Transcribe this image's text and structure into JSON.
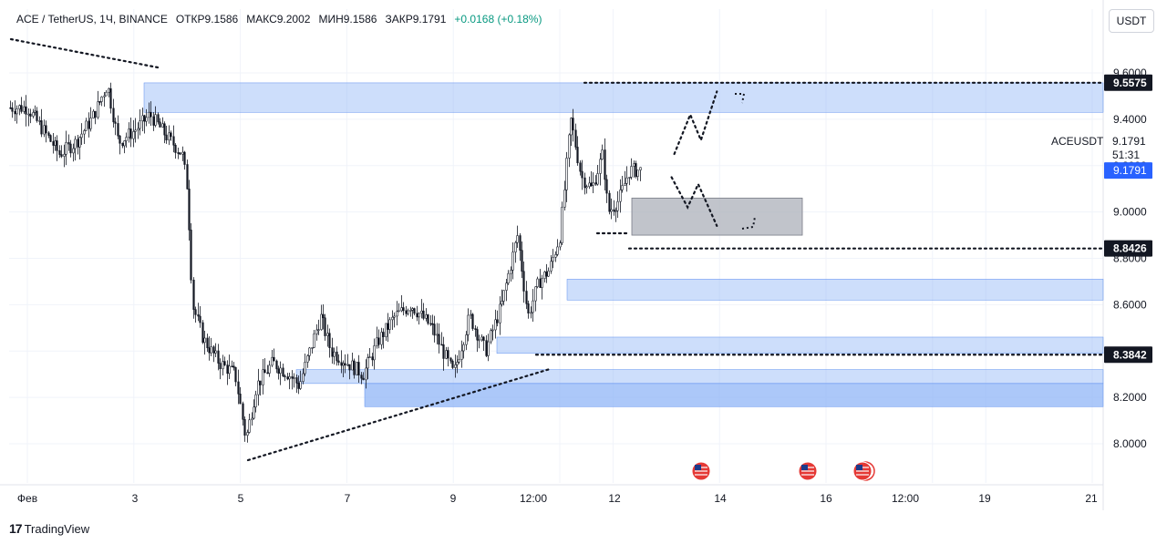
{
  "header": {
    "symbol": "ACE / TetherUS, 1Ч, BINANCE",
    "open_label": "ОТКР",
    "open_value": "9.1586",
    "high_label": "МАКС",
    "high_value": "9.2002",
    "low_label": "МИН",
    "low_value": "9.1586",
    "close_label": "ЗАКР",
    "close_value": "9.1791",
    "change": "+0.0168 (+0.18%)"
  },
  "currency_button": "USDT",
  "branding": {
    "logo_text": "TradingView"
  },
  "colors": {
    "zone": "#90b6f7",
    "grey_zone": "#b2b5be",
    "up": "#131722",
    "down": "#131722",
    "badge": "#131722",
    "price_badge": "#2962ff"
  },
  "symbol_tag": {
    "name": "ACEUSDT",
    "price": "9.1791",
    "countdown": "51:31",
    "badge_price": "9.1791"
  },
  "chart_data": {
    "type": "candlestick",
    "y_axis": {
      "ticks": [
        9.6,
        9.4,
        9.2,
        9.0,
        8.8,
        8.6,
        8.4,
        8.2,
        8.0
      ],
      "tick_labels": [
        "9.6000",
        "9.4000",
        "9.2000",
        "9.0000",
        "8.8000",
        "8.6000",
        "8.4000",
        "8.2000",
        "8.0000"
      ],
      "range": [
        7.9,
        9.68
      ]
    },
    "x_axis": {
      "labels": [
        "Фев",
        "3",
        "5",
        "7",
        "9",
        "12:00",
        "12",
        "14",
        "16",
        "12:00",
        "19",
        "21"
      ]
    },
    "level_badges": [
      "9.5575",
      "8.8426",
      "8.3842"
    ],
    "levels": [
      9.5575,
      8.8426,
      8.3842
    ],
    "zones": [
      {
        "from": 9.557,
        "to": 9.43,
        "start": "3",
        "end": "right"
      },
      {
        "from": 8.71,
        "to": 8.62,
        "start": "12:00 (Feb 10)",
        "end": "right"
      },
      {
        "from": 8.46,
        "to": 8.39,
        "start": "10",
        "end": "right"
      },
      {
        "from": 8.32,
        "to": 8.26,
        "start": "8",
        "end": "right"
      },
      {
        "from": 8.26,
        "to": 8.16,
        "start": "6",
        "end": "right"
      }
    ],
    "grey_zone": {
      "from": 9.06,
      "to": 8.9
    },
    "trendlines": [
      {
        "from": {
          "t": "Feb 1",
          "price": 9.78
        },
        "to": {
          "t": "Feb 3.4",
          "price": 9.65
        }
      },
      {
        "from": {
          "t": "Feb 5",
          "price": 7.93
        },
        "to": {
          "t": "Feb 10.3",
          "price": 8.32
        }
      }
    ],
    "candles_approx": {
      "note": "Hourly candles approximated from image",
      "path_points": [
        [
          1.0,
          9.45
        ],
        [
          1.3,
          9.35
        ],
        [
          1.6,
          9.25
        ],
        [
          1.9,
          9.3
        ],
        [
          2.2,
          9.4
        ],
        [
          2.5,
          9.55
        ],
        [
          2.7,
          9.3
        ],
        [
          3.0,
          9.35
        ],
        [
          3.3,
          9.42
        ],
        [
          3.6,
          9.33
        ],
        [
          3.9,
          9.25
        ],
        [
          4.0,
          9.1
        ],
        [
          4.1,
          8.6
        ],
        [
          4.3,
          8.45
        ],
        [
          4.6,
          8.35
        ],
        [
          4.9,
          8.3
        ],
        [
          5.1,
          8.02
        ],
        [
          5.3,
          8.25
        ],
        [
          5.6,
          8.35
        ],
        [
          5.9,
          8.3
        ],
        [
          6.1,
          8.25
        ],
        [
          6.3,
          8.4
        ],
        [
          6.5,
          8.55
        ],
        [
          6.7,
          8.4
        ],
        [
          7.0,
          8.35
        ],
        [
          7.3,
          8.3
        ],
        [
          7.6,
          8.45
        ],
        [
          7.9,
          8.55
        ],
        [
          8.2,
          8.6
        ],
        [
          8.6,
          8.5
        ],
        [
          9.0,
          8.3
        ],
        [
          9.3,
          8.55
        ],
        [
          9.6,
          8.4
        ],
        [
          9.9,
          8.6
        ],
        [
          10.2,
          8.9
        ],
        [
          10.4,
          8.55
        ],
        [
          10.6,
          8.7
        ],
        [
          10.8,
          8.75
        ],
        [
          11.0,
          8.9
        ],
        [
          11.2,
          9.4
        ],
        [
          11.4,
          9.15
        ],
        [
          11.6,
          9.1
        ],
        [
          11.8,
          9.25
        ],
        [
          11.9,
          9.0
        ],
        [
          12.1,
          9.05
        ],
        [
          12.3,
          9.18
        ]
      ]
    },
    "projections": [
      {
        "name": "bullish",
        "points": [
          [
            13.15,
            9.25
          ],
          [
            13.45,
            9.42
          ],
          [
            13.65,
            9.31
          ],
          [
            13.95,
            9.52
          ]
        ]
      },
      {
        "name": "bearish",
        "points": [
          [
            13.1,
            9.15
          ],
          [
            13.4,
            9.02
          ],
          [
            13.6,
            9.12
          ],
          [
            13.95,
            8.94
          ]
        ]
      }
    ],
    "event_markers": [
      "Feb 13.8",
      "Feb 15.8",
      "Feb 16.8"
    ]
  }
}
